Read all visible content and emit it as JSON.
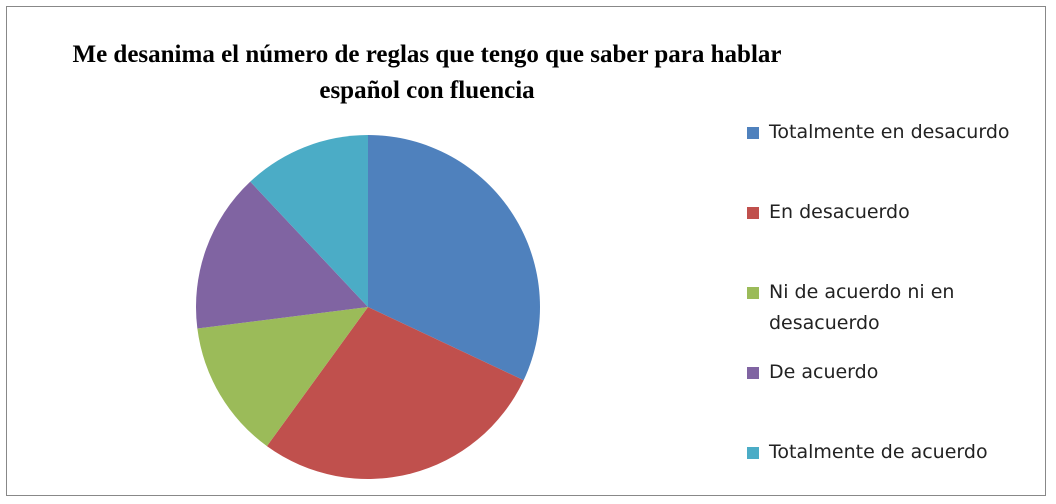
{
  "chart_data": {
    "type": "pie",
    "title": "Me desanima el número de reglas que tengo que saber para hablar español con fluencia",
    "categories": [
      "Totalmente en desacurdo",
      "En desacuerdo",
      "Ni de acuerdo ni en desacuerdo",
      "De acuerdo",
      "Totalmente de acuerdo"
    ],
    "values": [
      32,
      28,
      13,
      15,
      12
    ],
    "colors": [
      "#4f81bd",
      "#c0504d",
      "#9bbb59",
      "#8064a2",
      "#4bacc6"
    ],
    "legend": "right"
  }
}
